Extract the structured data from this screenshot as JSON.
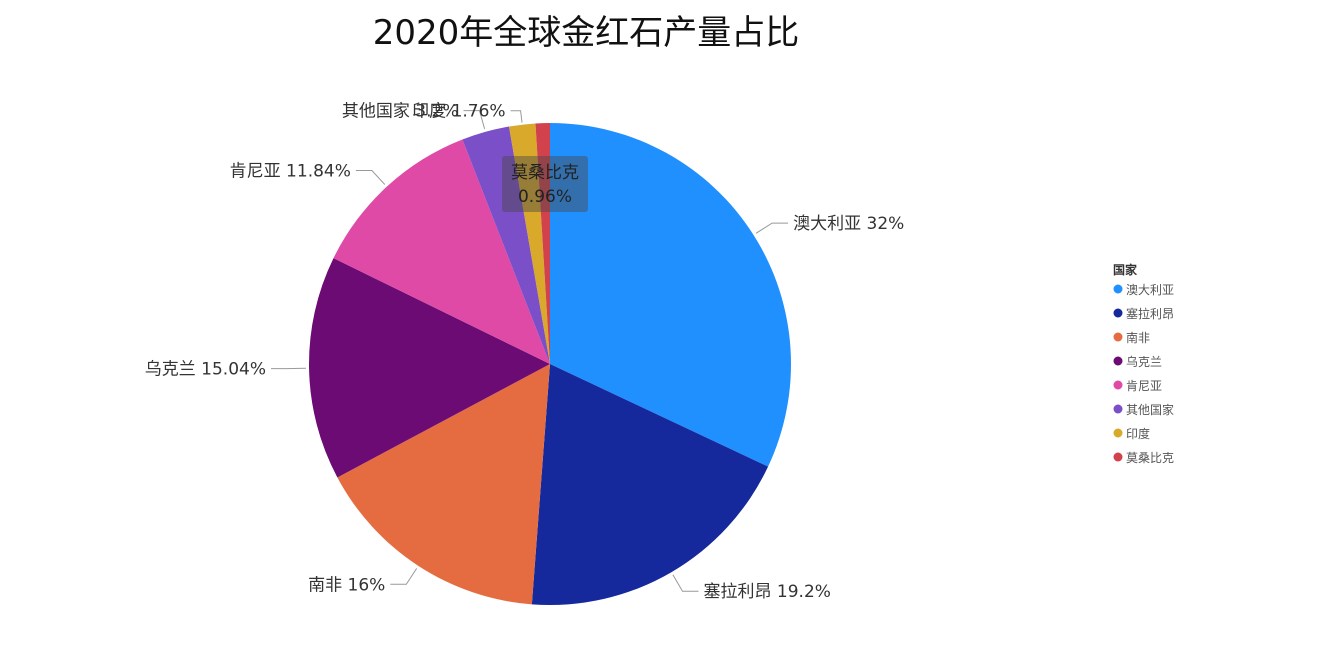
{
  "chart_data": {
    "type": "pie",
    "title": "2020年全球金红石产量占比",
    "legend_title": "国家",
    "legend_position": "right",
    "slices": [
      {
        "label": "澳大利亚",
        "value": 32,
        "display": "32%",
        "color": "#2190FF"
      },
      {
        "label": "塞拉利昂",
        "value": 19.2,
        "display": "19.2%",
        "color": "#15299C"
      },
      {
        "label": "南非",
        "value": 16,
        "display": "16%",
        "color": "#E56C40"
      },
      {
        "label": "乌克兰",
        "value": 15.04,
        "display": "15.04%",
        "color": "#6B0B73"
      },
      {
        "label": "肯尼亚",
        "value": 11.84,
        "display": "11.84%",
        "color": "#DE4AA5"
      },
      {
        "label": "其他国家",
        "value": 3.2,
        "display": "3.2%",
        "color": "#7B4FC7"
      },
      {
        "label": "印度",
        "value": 1.76,
        "display": "1.76%",
        "color": "#D9A92B"
      },
      {
        "label": "莫桑比克",
        "value": 0.96,
        "display": "0.96%",
        "color": "#D2424D"
      }
    ]
  }
}
